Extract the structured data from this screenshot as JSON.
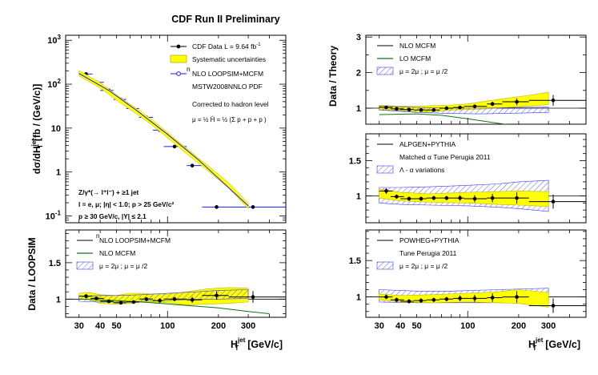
{
  "figure": {
    "title": "CDF Run II Preliminary",
    "x_axis_label": "H",
    "x_axis_label_sup": "jet",
    "x_axis_label_sub": "T",
    "x_axis_unit": "[GeV/c]",
    "x_tick_labels": [
      "30",
      "40",
      "50",
      "100",
      "200",
      "300"
    ],
    "colors": {
      "band": "#ffff00",
      "band_edge": "#b8b800",
      "hatch": "#3a3aff",
      "data": "#000000",
      "theory": "#1a1aff",
      "lo": "#117711"
    }
  },
  "chart_data": [
    {
      "type": "scatter",
      "panel": "cross-section",
      "ylabel": "dσ/dH  [fb / (GeV/c)]",
      "ylabel_main": "dσ/dH",
      "ylabel_sup": "jet",
      "ylabel_sub": "T",
      "ylabel_unit": "[fb / (GeV/c)]",
      "x_scale": "log",
      "y_scale": "log",
      "xlim": [
        25,
        500
      ],
      "ylim": [
        0.07,
        1300
      ],
      "y_ticks": [
        {
          "value": 1000,
          "mant": "10",
          "exp": "3"
        },
        {
          "value": 100,
          "mant": "10",
          "exp": "2"
        },
        {
          "value": 10,
          "mant": "10",
          "exp": ""
        },
        {
          "value": 1,
          "mant": "1",
          "exp": ""
        },
        {
          "value": 0.1,
          "mant": "10",
          "exp": "-1"
        }
      ],
      "legend": [
        {
          "type": "data",
          "label": "CDF Data  L = 9.64 fb",
          "sup": "-1"
        },
        {
          "type": "band",
          "label": "Systematic uncertainties"
        },
        {
          "type": "theory",
          "label": "NLO LOOPSIM+MCFM",
          "over": "n"
        }
      ],
      "info_lines": [
        "MSTW2008NNLO PDF",
        "Corrected to hadron level"
      ],
      "scale_formula": "μ = ½ Ĥ = ½ (Σ p + p + p )",
      "selection_lines": [
        "Z/γ*(→ l⁺l⁻) + ≥1 jet",
        "l = e, μ; |η| < 1.0; p > 25 GeV/c²",
        "p ≥ 30 GeV/c, |Y| ≤ 2.1"
      ],
      "series": [
        {
          "kind": "data",
          "x": [
            33,
            38,
            45,
            53,
            63,
            75,
            90,
            110,
            140,
            195,
            320
          ],
          "xlow": [
            30,
            35,
            40,
            48,
            57,
            68,
            82,
            95,
            130,
            160,
            230
          ],
          "xhigh": [
            36,
            42,
            48,
            57,
            68,
            82,
            95,
            130,
            160,
            230,
            500
          ],
          "y": [
            170,
            110,
            72,
            45,
            28,
            17.5,
            9,
            3.8,
            1.4,
            0.16,
            0.16
          ]
        },
        {
          "kind": "band",
          "x": [
            30,
            40,
            50,
            65,
            80,
            100,
            130,
            170,
            230,
            300
          ],
          "y": [
            180,
            95,
            50,
            25,
            14,
            7,
            3,
            1.3,
            0.5,
            0.17
          ],
          "rel_width": 0.14
        },
        {
          "kind": "theory",
          "x": [
            30,
            45,
            65,
            100,
            150,
            300
          ],
          "y": [
            175,
            72,
            26,
            7.2,
            2,
            0.17
          ]
        }
      ]
    },
    {
      "type": "line",
      "panel": "data-over-loopsim",
      "ylabel": "Data / LOOPSIM",
      "x_scale": "log",
      "xlim": [
        25,
        500
      ],
      "ylim": [
        0.75,
        1.95
      ],
      "y_tick_labels": [
        "1",
        "1.5"
      ],
      "y_ticks": [
        1.0,
        1.5
      ],
      "legend": [
        {
          "type": "black",
          "label": "NLO LOOPSIM+MCFM",
          "over": "n"
        },
        {
          "type": "green",
          "label": "NLO MCFM"
        },
        {
          "type": "hatch",
          "label": "μ = 2μ  ; μ = μ /2"
        }
      ],
      "series": [
        {
          "kind": "band",
          "x": [
            30,
            35,
            40,
            50,
            60,
            70,
            80,
            100,
            130,
            170,
            230,
            300
          ],
          "hi": [
            1.08,
            1.09,
            1.06,
            1.05,
            1.08,
            1.08,
            1.07,
            1.07,
            1.1,
            1.14,
            1.16,
            1.15
          ],
          "lo": [
            1.0,
            0.99,
            0.94,
            0.93,
            0.94,
            0.96,
            0.96,
            0.95,
            0.92,
            0.93,
            0.94,
            0.96
          ]
        },
        {
          "kind": "hatch",
          "x": [
            30,
            40,
            50,
            70,
            100,
            150,
            200,
            300
          ],
          "hi": [
            1.04,
            1.05,
            1.05,
            1.06,
            1.08,
            1.1,
            1.12,
            1.13
          ],
          "lo": [
            0.97,
            0.96,
            0.96,
            0.97,
            0.98,
            1.0,
            1.0,
            1.01
          ]
        },
        {
          "kind": "green",
          "x": [
            30,
            50,
            80,
            120,
            200,
            300,
            400
          ],
          "y": [
            1.0,
            0.98,
            0.95,
            0.92,
            0.88,
            0.83,
            0.8
          ]
        },
        {
          "kind": "data",
          "x": [
            33,
            38,
            45,
            53,
            63,
            75,
            90,
            110,
            140,
            195,
            320
          ],
          "xlow": [
            30,
            35,
            40,
            48,
            57,
            68,
            82,
            95,
            130,
            160,
            230
          ],
          "xhigh": [
            36,
            42,
            48,
            57,
            68,
            82,
            95,
            130,
            160,
            230,
            500
          ],
          "y": [
            1.04,
            1.01,
            0.97,
            0.95,
            0.96,
            1.0,
            0.98,
            1.0,
            0.99,
            1.05,
            1.03
          ],
          "err": [
            0.03,
            0.02,
            0.02,
            0.02,
            0.02,
            0.02,
            0.03,
            0.03,
            0.04,
            0.06,
            0.08
          ]
        }
      ]
    },
    {
      "type": "line",
      "panel": "data-over-mcfm",
      "ylabel": "Data / Theory",
      "x_scale": "log",
      "xlim": [
        25,
        500
      ],
      "ylim": [
        0.55,
        3.05
      ],
      "y_tick_labels": [
        "1",
        "2",
        "3"
      ],
      "y_ticks": [
        1,
        2,
        3
      ],
      "legend": [
        {
          "type": "black",
          "label": "NLO MCFM"
        },
        {
          "type": "green",
          "label": "LO MCFM"
        },
        {
          "type": "hatch",
          "label": "μ = 2μ  ; μ = μ /2"
        }
      ],
      "series": [
        {
          "kind": "band",
          "x": [
            30,
            40,
            50,
            60,
            70,
            80,
            100,
            130,
            170,
            230,
            300
          ],
          "hi": [
            1.08,
            1.06,
            1.05,
            1.07,
            1.08,
            1.09,
            1.12,
            1.2,
            1.28,
            1.36,
            1.45
          ],
          "lo": [
            0.96,
            0.93,
            0.9,
            0.89,
            0.92,
            0.95,
            0.96,
            0.98,
            1.02,
            1.06,
            1.1
          ]
        },
        {
          "kind": "hatch",
          "x": [
            30,
            50,
            80,
            120,
            200,
            300
          ],
          "hi": [
            1.06,
            1.02,
            1.0,
            1.0,
            1.02,
            1.03
          ],
          "lo": [
            0.95,
            0.88,
            0.85,
            0.84,
            0.86,
            0.88
          ]
        },
        {
          "kind": "green",
          "x": [
            30,
            50,
            70,
            100,
            150,
            200,
            300
          ],
          "y": [
            0.82,
            0.84,
            0.8,
            0.7,
            0.58,
            0.5,
            0.39
          ]
        },
        {
          "kind": "data",
          "x": [
            33,
            38,
            45,
            53,
            63,
            75,
            90,
            110,
            140,
            195,
            320
          ],
          "xlow": [
            30,
            35,
            40,
            48,
            57,
            68,
            82,
            95,
            130,
            160,
            230
          ],
          "xhigh": [
            36,
            42,
            48,
            57,
            68,
            82,
            95,
            130,
            160,
            230,
            500
          ],
          "y": [
            1.02,
            0.98,
            0.96,
            0.95,
            0.95,
            1.0,
            1.02,
            1.05,
            1.12,
            1.18,
            1.22
          ],
          "err": [
            0.04,
            0.03,
            0.03,
            0.03,
            0.03,
            0.03,
            0.04,
            0.05,
            0.06,
            0.1,
            0.15
          ]
        }
      ]
    },
    {
      "type": "line",
      "panel": "data-over-alpgen",
      "ylabel": "",
      "x_scale": "log",
      "xlim": [
        25,
        500
      ],
      "ylim": [
        0.62,
        1.88
      ],
      "y_tick_labels": [
        "1",
        "1.5"
      ],
      "y_ticks": [
        1.0,
        1.5
      ],
      "legend": [
        {
          "type": "black",
          "label": "ALPGEN+PYTHIA"
        },
        {
          "type": "text",
          "label": "Matched α  Tune Perugia 2011"
        },
        {
          "type": "hatch",
          "label": "Λ    - α      variations"
        }
      ],
      "series": [
        {
          "kind": "hatch",
          "x": [
            30,
            40,
            60,
            100,
            150,
            200,
            300
          ],
          "hi": [
            1.12,
            1.12,
            1.13,
            1.15,
            1.17,
            1.2,
            1.22
          ],
          "lo": [
            0.9,
            0.88,
            0.87,
            0.86,
            0.84,
            0.82,
            0.78
          ]
        },
        {
          "kind": "band",
          "x": [
            30,
            40,
            60,
            100,
            150,
            200,
            300
          ],
          "hi": [
            1.1,
            1.05,
            1.03,
            1.05,
            1.06,
            1.07,
            1.06
          ],
          "lo": [
            0.97,
            0.93,
            0.91,
            0.9,
            0.88,
            0.87,
            0.85
          ]
        },
        {
          "kind": "data",
          "x": [
            33,
            38,
            45,
            53,
            63,
            75,
            90,
            110,
            140,
            195,
            320
          ],
          "xlow": [
            30,
            35,
            40,
            48,
            57,
            68,
            82,
            95,
            130,
            160,
            230
          ],
          "xhigh": [
            36,
            42,
            48,
            57,
            68,
            82,
            95,
            130,
            160,
            230,
            500
          ],
          "y": [
            1.07,
            0.99,
            0.96,
            0.96,
            0.97,
            0.97,
            0.97,
            0.96,
            0.97,
            0.97,
            0.92
          ],
          "err": [
            0.04,
            0.03,
            0.03,
            0.03,
            0.03,
            0.03,
            0.04,
            0.05,
            0.06,
            0.08,
            0.1
          ]
        }
      ]
    },
    {
      "type": "line",
      "panel": "data-over-powheg",
      "ylabel": "",
      "x_scale": "log",
      "xlim": [
        25,
        500
      ],
      "ylim": [
        0.72,
        1.92
      ],
      "y_tick_labels": [
        "1",
        "1.5"
      ],
      "y_ticks": [
        1.0,
        1.5
      ],
      "legend": [
        {
          "type": "black",
          "label": "POWHEG+PYTHIA"
        },
        {
          "type": "text",
          "label": "Tune Perugia 2011"
        },
        {
          "type": "hatch",
          "label": "μ = 2μ  ; μ = μ /2"
        }
      ],
      "series": [
        {
          "kind": "hatch",
          "x": [
            30,
            50,
            80,
            150,
            300
          ],
          "hi": [
            1.1,
            1.08,
            1.08,
            1.1,
            1.12
          ],
          "lo": [
            0.93,
            0.92,
            0.92,
            0.92,
            0.93
          ]
        },
        {
          "kind": "band",
          "x": [
            30,
            40,
            60,
            100,
            150,
            200,
            300
          ],
          "hi": [
            1.04,
            1.02,
            1.03,
            1.05,
            1.07,
            1.1,
            1.06
          ],
          "lo": [
            0.96,
            0.93,
            0.92,
            0.93,
            0.92,
            0.91,
            0.86
          ]
        },
        {
          "kind": "data",
          "x": [
            33,
            38,
            45,
            53,
            63,
            75,
            90,
            110,
            140,
            195,
            320
          ],
          "xlow": [
            30,
            35,
            40,
            48,
            57,
            68,
            82,
            95,
            130,
            160,
            230
          ],
          "xhigh": [
            36,
            42,
            48,
            57,
            68,
            82,
            95,
            130,
            160,
            230,
            500
          ],
          "y": [
            1.0,
            0.96,
            0.94,
            0.95,
            0.96,
            0.97,
            0.98,
            0.98,
            0.99,
            1.0,
            0.88
          ],
          "err": [
            0.03,
            0.03,
            0.03,
            0.03,
            0.03,
            0.03,
            0.04,
            0.05,
            0.06,
            0.08,
            0.1
          ]
        }
      ]
    }
  ]
}
